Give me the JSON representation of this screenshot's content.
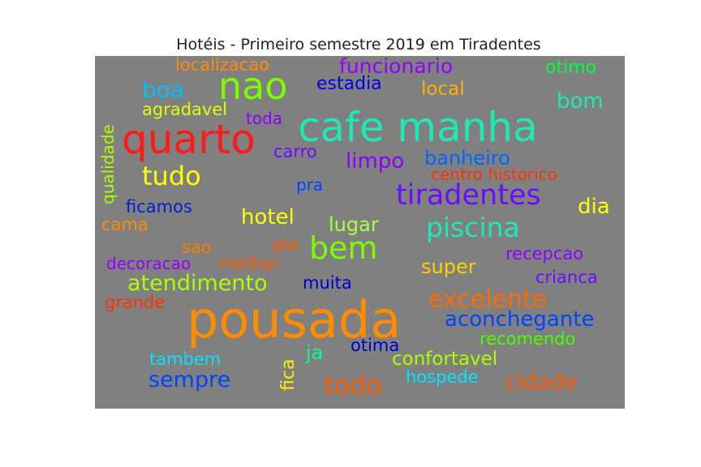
{
  "chart_data": {
    "type": "wordcloud",
    "title": "Hotéis - Primeiro semestre 2019 em Tiradentes",
    "words": [
      {
        "text": "pousada",
        "color": "#ff8c00"
      },
      {
        "text": "cafe manha",
        "color": "#1de9b6"
      },
      {
        "text": "quarto",
        "color": "#ff1a1a"
      },
      {
        "text": "nao",
        "color": "#7cfc00"
      },
      {
        "text": "tiradentes",
        "color": "#6a0dff"
      },
      {
        "text": "piscina",
        "color": "#1de9b6"
      },
      {
        "text": "bem",
        "color": "#7cfc00"
      },
      {
        "text": "tudo",
        "color": "#ffff00"
      },
      {
        "text": "todo",
        "color": "#ff5a00"
      },
      {
        "text": "funcionario",
        "color": "#9400ff"
      },
      {
        "text": "atendimento",
        "color": "#aaff00"
      },
      {
        "text": "excelente",
        "color": "#ff6a00"
      },
      {
        "text": "aconchegante",
        "color": "#0044ff"
      },
      {
        "text": "sempre",
        "color": "#0044ff"
      },
      {
        "text": "hotel",
        "color": "#ffff00"
      },
      {
        "text": "banheiro",
        "color": "#0066ff"
      },
      {
        "text": "cidade",
        "color": "#ff5a00"
      },
      {
        "text": "bom",
        "color": "#1de9b6"
      },
      {
        "text": "boa",
        "color": "#00bfff"
      },
      {
        "text": "estadia",
        "color": "#0000ee"
      },
      {
        "text": "local",
        "color": "#ffb000"
      },
      {
        "text": "localizacao",
        "color": "#ff8c00"
      },
      {
        "text": "otimo",
        "color": "#00ff44"
      },
      {
        "text": "dia",
        "color": "#ffff00"
      },
      {
        "text": "limpo",
        "color": "#8a00ff"
      },
      {
        "text": "confortavel",
        "color": "#aaff00"
      },
      {
        "text": "super",
        "color": "#ffd000"
      },
      {
        "text": "lugar",
        "color": "#aaff44"
      },
      {
        "text": "hospede",
        "color": "#00e5ff"
      },
      {
        "text": "tambem",
        "color": "#00e5ff"
      },
      {
        "text": "ja",
        "color": "#00ff99"
      },
      {
        "text": "fica",
        "color": "#ffee00"
      },
      {
        "text": "muita",
        "color": "#0000cc"
      },
      {
        "text": "crianca",
        "color": "#6a0dff"
      },
      {
        "text": "recepcao",
        "color": "#8a00ff"
      },
      {
        "text": "recomendo",
        "color": "#44ff00"
      },
      {
        "text": "otima",
        "color": "#0000cc"
      },
      {
        "text": "melhor",
        "color": "#ff5a00"
      },
      {
        "text": "decoracao",
        "color": "#9400ff"
      },
      {
        "text": "grande",
        "color": "#ff3300"
      },
      {
        "text": "sao",
        "color": "#ff7a00"
      },
      {
        "text": "ate",
        "color": "#ff5a00"
      },
      {
        "text": "cama",
        "color": "#ff8c00"
      },
      {
        "text": "ficamos",
        "color": "#0022cc"
      },
      {
        "text": "pra",
        "color": "#0044ff"
      },
      {
        "text": "carro",
        "color": "#6a0dff"
      },
      {
        "text": "toda",
        "color": "#8a00ff"
      },
      {
        "text": "agradavel",
        "color": "#ddff00"
      },
      {
        "text": "qualidade",
        "color": "#aaff00"
      },
      {
        "text": "centro historico",
        "color": "#ff3300"
      }
    ]
  }
}
